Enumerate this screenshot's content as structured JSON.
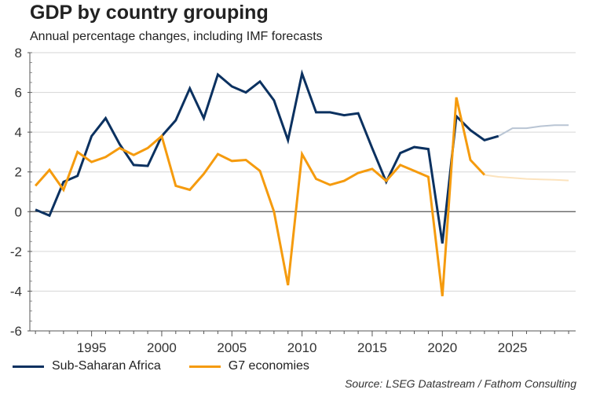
{
  "chart_data": {
    "type": "line",
    "title": "GDP by country grouping",
    "subtitle": "Annual percentage changes, including IMF forecasts",
    "xlabel": "",
    "ylabel": "",
    "ylim": [
      -6,
      8
    ],
    "yticks": [
      8,
      6,
      4,
      2,
      0,
      -2,
      -4,
      -6
    ],
    "xlim": [
      1990.6,
      2029.5
    ],
    "xticks": [
      1995,
      2000,
      2005,
      2010,
      2015,
      2020,
      2025
    ],
    "grid": true,
    "legend_position": "bottom-left",
    "forecast_start": 2024,
    "series": [
      {
        "name": "Sub-Saharan Africa",
        "color": "#0b3160",
        "forecast_color": "#b9c5d4",
        "x": [
          1991,
          1992,
          1993,
          1994,
          1995,
          1996,
          1997,
          1998,
          1999,
          2000,
          2001,
          2002,
          2003,
          2004,
          2005,
          2006,
          2007,
          2008,
          2009,
          2010,
          2011,
          2012,
          2013,
          2014,
          2015,
          2016,
          2017,
          2018,
          2019,
          2020,
          2021,
          2022,
          2023,
          2024,
          2025,
          2026,
          2027,
          2028,
          2029
        ],
        "values": [
          0.1,
          -0.2,
          1.5,
          1.8,
          3.8,
          4.7,
          3.4,
          2.35,
          2.3,
          3.8,
          4.6,
          6.2,
          4.7,
          6.9,
          6.3,
          6.0,
          6.55,
          5.6,
          3.6,
          6.95,
          5.0,
          5.0,
          4.85,
          4.95,
          3.2,
          1.5,
          2.95,
          3.25,
          3.15,
          -1.6,
          4.8,
          4.1,
          3.6,
          3.8,
          4.2,
          4.2,
          4.3,
          4.35,
          4.35
        ]
      },
      {
        "name": "G7 economies",
        "color": "#f59b0e",
        "forecast_color": "#fce3bd",
        "x": [
          1991,
          1992,
          1993,
          1994,
          1995,
          1996,
          1997,
          1998,
          1999,
          2000,
          2001,
          2002,
          2003,
          2004,
          2005,
          2006,
          2007,
          2008,
          2009,
          2010,
          2011,
          2012,
          2013,
          2014,
          2015,
          2016,
          2017,
          2018,
          2019,
          2020,
          2021,
          2022,
          2023,
          2024,
          2025,
          2026,
          2027,
          2028,
          2029
        ],
        "values": [
          1.3,
          2.1,
          1.1,
          3.0,
          2.5,
          2.75,
          3.2,
          2.85,
          3.2,
          3.8,
          1.3,
          1.1,
          1.9,
          2.9,
          2.55,
          2.6,
          2.05,
          0.0,
          -3.7,
          2.9,
          1.65,
          1.35,
          1.55,
          1.95,
          2.15,
          1.55,
          2.35,
          2.05,
          1.75,
          -4.25,
          5.75,
          2.6,
          1.85,
          1.75,
          1.7,
          1.65,
          1.62,
          1.6,
          1.57
        ]
      }
    ],
    "legend": [
      "Sub-Saharan Africa",
      "G7 economies"
    ],
    "source": "Source: LSEG Datastream / Fathom Consulting"
  }
}
